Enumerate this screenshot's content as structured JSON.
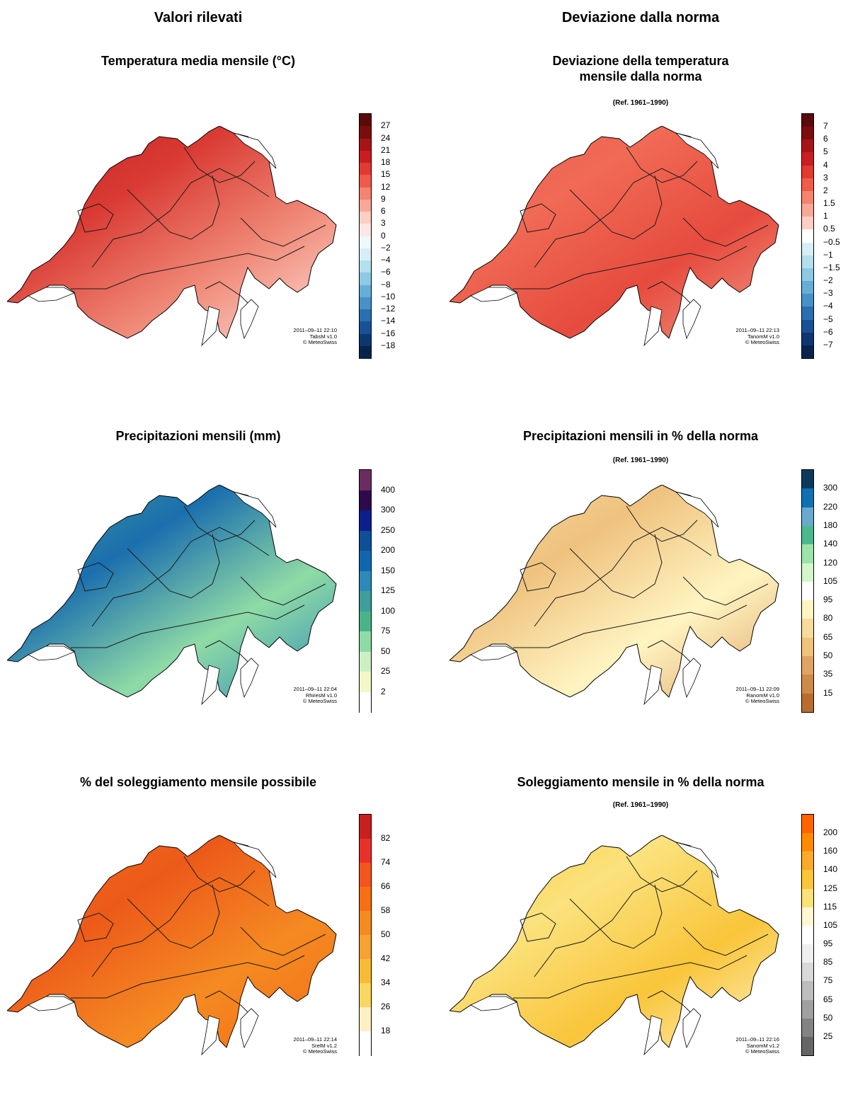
{
  "columns": {
    "left": "Valori rilevati",
    "right": "Deviazione dalla norma"
  },
  "panels": [
    {
      "id": "temp-abs",
      "title": "Temperatura media mensile (°C)",
      "ref": "",
      "stamp": [
        "2011–09–11 22:10",
        "TabsM v1.0",
        "© MeteoSwiss"
      ],
      "labels": [
        "27",
        "24",
        "21",
        "18",
        "15",
        "12",
        "9",
        "6",
        "3",
        "0",
        "−2",
        "−4",
        "−6",
        "−8",
        "−10",
        "−12",
        "−14",
        "−16",
        "−18"
      ],
      "colors": [
        "#5a0a0a",
        "#7a0d0d",
        "#a51518",
        "#c91d22",
        "#e03a33",
        "#ee5b4b",
        "#f4836f",
        "#f7a896",
        "#fbcfc4",
        "#fde7e3",
        "#eef7fb",
        "#d6eef6",
        "#b4dfee",
        "#8ec9e3",
        "#66aed6",
        "#4891c6",
        "#2c6fb1",
        "#1a5096",
        "#0e3770",
        "#08244d"
      ],
      "fill": [
        "#c22020",
        "#d93a33",
        "#f08a78",
        "#fde0da"
      ]
    },
    {
      "id": "temp-dev",
      "title": "Deviazione della temperatura\nmensile dalla norma",
      "ref": "(Ref. 1961–1990)",
      "stamp": [
        "2011–09–11 22:13",
        "TanomM v1.0",
        "© MeteoSwiss"
      ],
      "labels": [
        "7",
        "6",
        "5",
        "4",
        "3",
        "2",
        "1.5",
        "1",
        "0.5",
        "−0.5",
        "−1",
        "−1.5",
        "−2",
        "−3",
        "−4",
        "−5",
        "−6",
        "−7"
      ],
      "colors": [
        "#5a0a0a",
        "#7a0d0d",
        "#a51518",
        "#c91d22",
        "#e03a33",
        "#ee5b4b",
        "#f4836f",
        "#f7a896",
        "#fbcfc4",
        "#ffffff",
        "#d6eef6",
        "#b4dfee",
        "#8ec9e3",
        "#66aed6",
        "#4891c6",
        "#2c6fb1",
        "#1a5096",
        "#0e3770",
        "#08244d"
      ],
      "fill": [
        "#ec5f4d",
        "#f06a55",
        "#e64b3e",
        "#f29a88"
      ]
    },
    {
      "id": "precip-abs",
      "title": "Precipitazioni mensili  (mm)",
      "ref": "",
      "stamp": [
        "2011–09–11 22:04",
        "RhiresM v1.0",
        "© MeteoSwiss"
      ],
      "labels": [
        "400",
        "300",
        "250",
        "200",
        "150",
        "125",
        "100",
        "75",
        "50",
        "25",
        "2"
      ],
      "colors": [
        "#6b2d5f",
        "#2e0a4a",
        "#0c1f8a",
        "#0f4f95",
        "#1366ae",
        "#2d8ab8",
        "#3f9e9b",
        "#4bb38a",
        "#8fdba6",
        "#cdf0c2",
        "#f2f8c8",
        "#ffffff"
      ],
      "fill": [
        "#3fa091",
        "#1b6fae",
        "#8fdba6",
        "#2d8ab8"
      ]
    },
    {
      "id": "precip-dev",
      "title": "Precipitazioni mensili in % della norma",
      "ref": "(Ref. 1961–1990)",
      "stamp": [
        "2011–09–11 22:09",
        "RanomM v1.0",
        "© MeteoSwiss"
      ],
      "labels": [
        "300",
        "220",
        "180",
        "140",
        "120",
        "105",
        "95",
        "80",
        "65",
        "50",
        "35",
        "15"
      ],
      "colors": [
        "#0d3a5c",
        "#1070b0",
        "#6aa9cc",
        "#4cb98d",
        "#9fe3aa",
        "#d4f5cc",
        "#ffffff",
        "#fff5c2",
        "#f5dc9e",
        "#efc27e",
        "#e0a366",
        "#cc8a4b",
        "#b86c2d"
      ],
      "fill": [
        "#f5dc9e",
        "#efc27e",
        "#fff5c2",
        "#e0a366"
      ]
    },
    {
      "id": "sun-abs",
      "title": "% del soleggiamento mensile possibile",
      "ref": "",
      "stamp": [
        "2011–09–11 22:14",
        "SrelM v1.2",
        "© MeteoSwiss"
      ],
      "labels": [
        "82",
        "74",
        "66",
        "58",
        "50",
        "42",
        "34",
        "26",
        "18"
      ],
      "colors": [
        "#c81f1f",
        "#e8312a",
        "#f2551f",
        "#f76f14",
        "#f58a22",
        "#f6a234",
        "#f8bb38",
        "#fbd661",
        "#fff0c4",
        "#ffffff"
      ],
      "fill": [
        "#f26d14",
        "#ec5a1a",
        "#f58a22",
        "#f26d14"
      ]
    },
    {
      "id": "sun-dev",
      "title": "Soleggiamento mensile in % della norma",
      "ref": "(Ref. 1961–1990)",
      "stamp": [
        "2011–09–11 22:16",
        "SanomM v1.2",
        "© MeteoSwiss"
      ],
      "labels": [
        "200",
        "160",
        "140",
        "125",
        "115",
        "105",
        "95",
        "85",
        "75",
        "65",
        "50",
        "25"
      ],
      "colors": [
        "#ff6400",
        "#ff8a00",
        "#f8aa2a",
        "#f9c53a",
        "#fae27a",
        "#fff7d2",
        "#ffffff",
        "#efefef",
        "#d9d9d9",
        "#bdbdbd",
        "#a0a0a0",
        "#838383",
        "#666666"
      ],
      "fill": [
        "#f8cc3a",
        "#fbe27e",
        "#f9c53a",
        "#fff3c8"
      ]
    }
  ]
}
